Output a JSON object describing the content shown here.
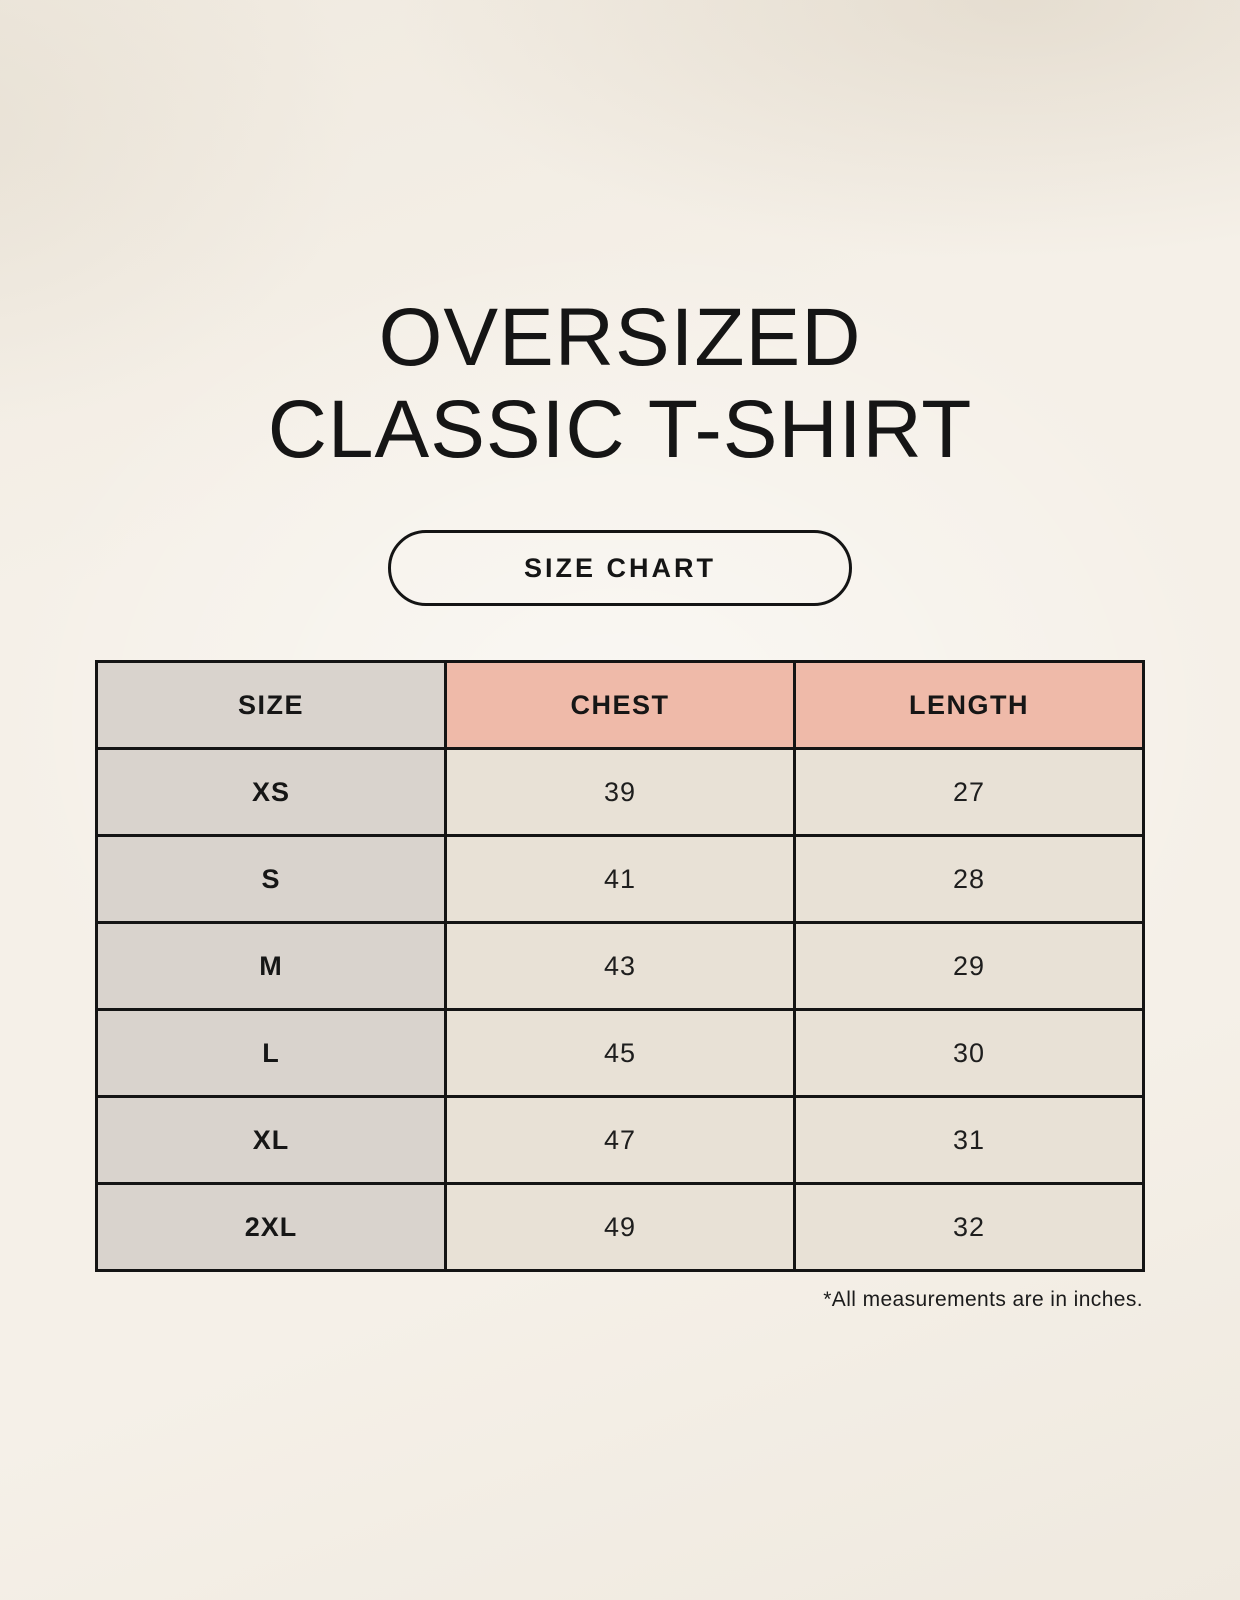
{
  "title": {
    "line1": "OVERSIZED",
    "line2": "CLASSIC T-SHIRT"
  },
  "badge_label": "SIZE CHART",
  "footnote": "*All measurements are in inches.",
  "chart_data": {
    "type": "table",
    "title": "OVERSIZED CLASSIC T-SHIRT SIZE CHART",
    "units": "inches",
    "columns": [
      "SIZE",
      "CHEST",
      "LENGTH"
    ],
    "rows": [
      [
        "XS",
        "39",
        "27"
      ],
      [
        "S",
        "41",
        "28"
      ],
      [
        "M",
        "43",
        "29"
      ],
      [
        "L",
        "45",
        "30"
      ],
      [
        "XL",
        "47",
        "31"
      ],
      [
        "2XL",
        "49",
        "32"
      ]
    ]
  },
  "colors": {
    "background": "#f5f0e8",
    "header_accent": "#efbaa9",
    "size_column": "#d9d3cd",
    "data_cell": "#e8e1d6",
    "border": "#141414",
    "text": "#161616"
  }
}
